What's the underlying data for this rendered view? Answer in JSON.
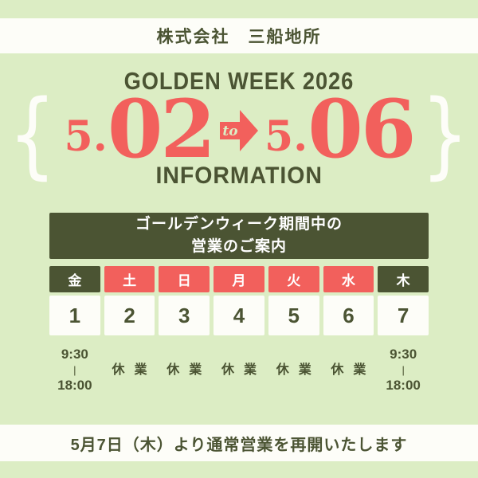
{
  "header": {
    "company": "株式会社　三船地所"
  },
  "hero": {
    "event_title": "GOLDEN WEEK 2026",
    "brace_left": "{",
    "brace_right": "}",
    "start": {
      "month": "5.",
      "day": "02"
    },
    "connector": "to",
    "end": {
      "month": "5.",
      "day": "06"
    },
    "info_label": "INFORMATION"
  },
  "notice": {
    "line1": "ゴールデンウィーク期間中の",
    "line2": "営業のご案内"
  },
  "calendar": {
    "day_headers": [
      {
        "label": "金",
        "status": "business"
      },
      {
        "label": "土",
        "status": "holiday"
      },
      {
        "label": "日",
        "status": "holiday"
      },
      {
        "label": "月",
        "status": "holiday"
      },
      {
        "label": "火",
        "status": "holiday"
      },
      {
        "label": "水",
        "status": "holiday"
      },
      {
        "label": "木",
        "status": "business"
      }
    ],
    "dates": [
      "1",
      "2",
      "3",
      "4",
      "5",
      "6",
      "7"
    ],
    "schedule": [
      {
        "type": "hours",
        "open": "9:30",
        "separator": "|",
        "close": "18:00"
      },
      {
        "type": "closed",
        "label": "休業"
      },
      {
        "type": "closed",
        "label": "休業"
      },
      {
        "type": "closed",
        "label": "休業"
      },
      {
        "type": "closed",
        "label": "休業"
      },
      {
        "type": "closed",
        "label": "休業"
      },
      {
        "type": "hours",
        "open": "9:30",
        "separator": "|",
        "close": "18:00"
      }
    ]
  },
  "footer": {
    "message": "5月7日（木）より通常営業を再開いたします"
  },
  "colors": {
    "background": "#dcedc4",
    "dark_green": "#4b5433",
    "accent_red": "#f2605c",
    "band_white": "#fdfdf8"
  }
}
